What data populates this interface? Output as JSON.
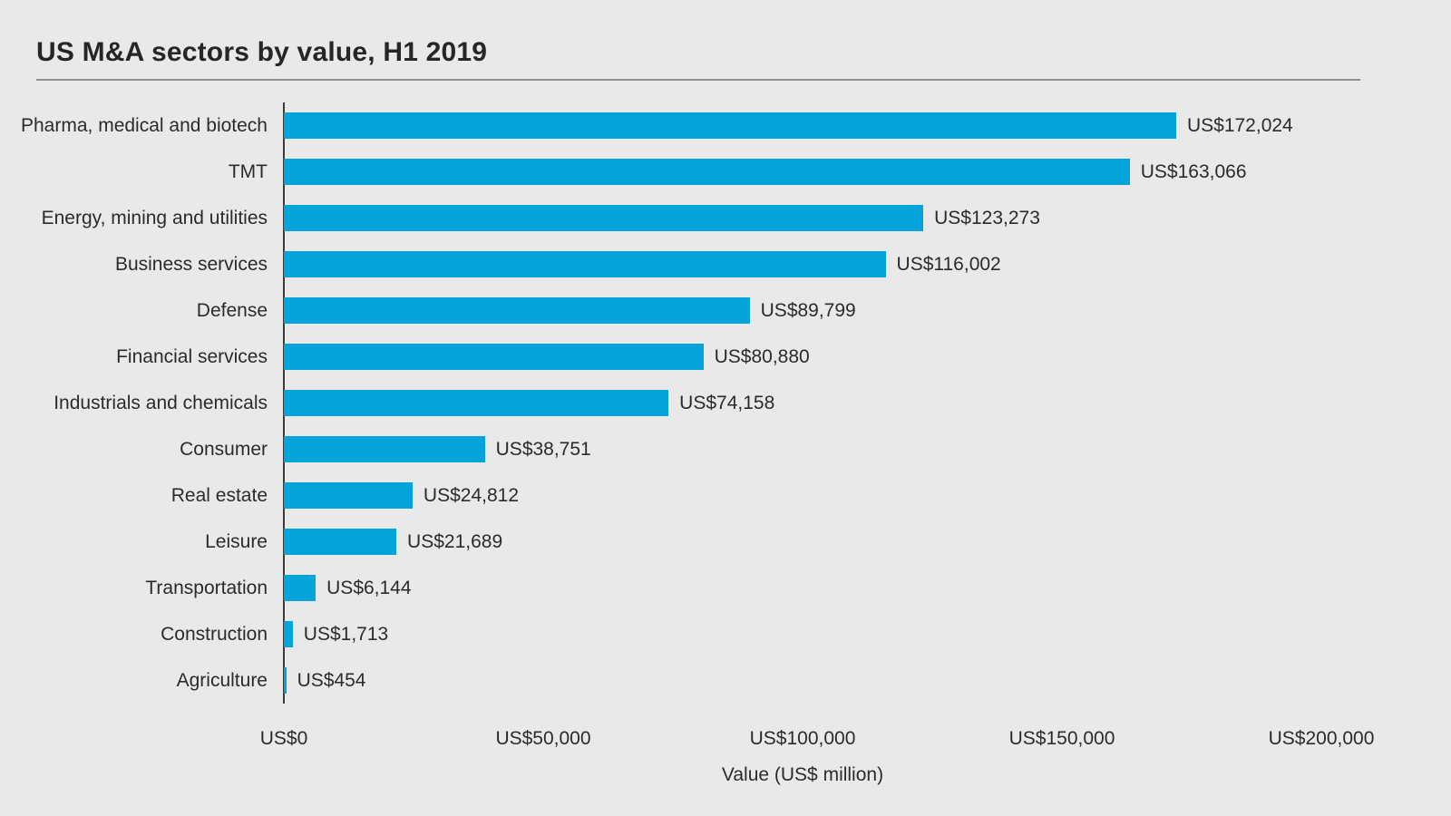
{
  "page": {
    "title": "US M&A sectors by value, H1 2019"
  },
  "chart_data": {
    "type": "bar",
    "orientation": "horizontal",
    "title": "US M&A sectors by value, H1 2019",
    "categories": [
      "Pharma, medical and biotech",
      "TMT",
      "Energy, mining and utilities",
      "Business services",
      "Defense",
      "Financial services",
      "Industrials and chemicals",
      "Consumer",
      "Real estate",
      "Leisure",
      "Transportation",
      "Construction",
      "Agriculture"
    ],
    "values": [
      172024,
      163066,
      123273,
      116002,
      89799,
      80880,
      74158,
      38751,
      24812,
      21689,
      6144,
      1713,
      454
    ],
    "value_labels": [
      "US$172,024",
      "US$163,066",
      "US$123,273",
      "US$116,002",
      "US$89,799",
      "US$80,880",
      "US$74,158",
      "US$38,751",
      "US$24,812",
      "US$21,689",
      "US$6,144",
      "US$1,713",
      "US$454"
    ],
    "xlabel": "Value (US$ million)",
    "xlim": [
      0,
      200000
    ],
    "xticks": [
      0,
      50000,
      100000,
      150000,
      200000
    ],
    "xtick_labels": [
      "US$0",
      "US$50,000",
      "US$100,000",
      "US$150,000",
      "US$200,000"
    ],
    "grid": false,
    "legend": null,
    "colors": {
      "bar": "#04a3da",
      "background": "#e9e9e9",
      "text": "#2b2b2b",
      "axis_line": "#3a3a3a",
      "divider": "#8f8f8f"
    }
  }
}
